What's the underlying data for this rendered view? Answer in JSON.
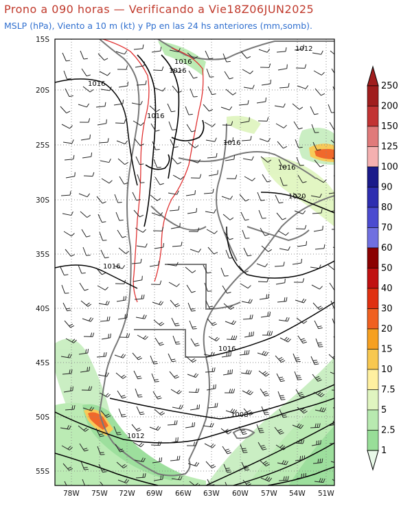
{
  "header": {
    "title": "Prono a 090 horas — Verificando a Vie18Z06JUN2025",
    "subtitle": "MSLP (hPa), Viento a 10 m (kt) y Pp en las 24 hs anteriores (mm,somb)."
  },
  "map": {
    "lat_labels": [
      "15S",
      "20S",
      "25S",
      "30S",
      "35S",
      "40S",
      "45S",
      "50S",
      "55S"
    ],
    "lon_labels": [
      "78W",
      "75W",
      "72W",
      "69W",
      "66W",
      "63W",
      "60W",
      "57W",
      "54W",
      "51W"
    ],
    "isobar_labels": [
      "1012",
      "1016",
      "1016",
      "1016",
      "1016",
      "1016",
      "1020",
      "1016",
      "1016",
      "1016",
      "1008",
      "1012"
    ],
    "colors": {
      "coast": "#777777",
      "isobar": "#000000",
      "topo": "#e03030",
      "grid": "#888888"
    }
  },
  "colorbar": {
    "labels": [
      "250",
      "200",
      "150",
      "125",
      "100",
      "90",
      "80",
      "70",
      "60",
      "50",
      "40",
      "30",
      "20",
      "15",
      "10",
      "7.5",
      "5",
      "2.5",
      "1"
    ],
    "colors": [
      "#a01d1d",
      "#c23333",
      "#e07a7a",
      "#f4b0b0",
      "#1a1a8a",
      "#2e2eb0",
      "#4b4bd0",
      "#7070e0",
      "#8b0000",
      "#c01010",
      "#e03010",
      "#f06020",
      "#f6a020",
      "#f8c850",
      "#fff0a0",
      "#e0f5c0",
      "#b8eab0",
      "#98de98",
      "#e8f8e8"
    ]
  }
}
